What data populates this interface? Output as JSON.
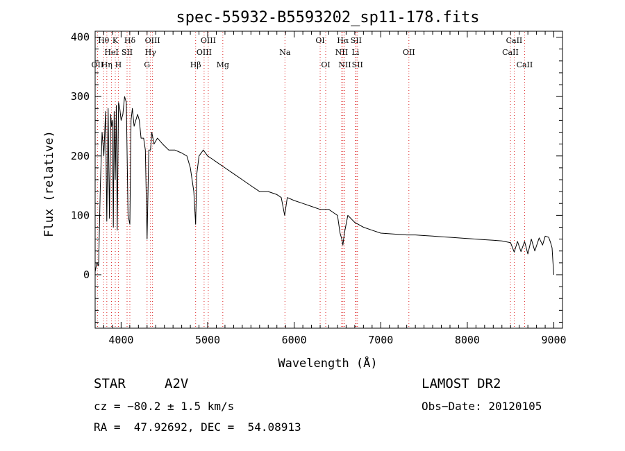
{
  "chart_data": {
    "type": "line",
    "title": "spec-55932-B5593202_sp11-178.fits",
    "xlabel": "Wavelength (Å)",
    "ylabel": "Flux (relative)",
    "xlim": [
      3700,
      9100
    ],
    "ylim": [
      -90,
      410
    ],
    "xticks": [
      4000,
      5000,
      6000,
      7000,
      8000,
      9000
    ],
    "yticks": [
      0,
      100,
      200,
      300,
      400
    ],
    "grid": false,
    "series": [
      {
        "x": [
          3700,
          3720,
          3740,
          3760,
          3780,
          3800,
          3820,
          3835,
          3850,
          3865,
          3880,
          3890,
          3900,
          3910,
          3920,
          3933,
          3945,
          3955,
          3970,
          3985,
          4000,
          4020,
          4040,
          4060,
          4080,
          4101,
          4115,
          4130,
          4150,
          4170,
          4190,
          4210,
          4230,
          4260,
          4280,
          4300,
          4320,
          4340,
          4355,
          4380,
          4420,
          4480,
          4550,
          4620,
          4700,
          4760,
          4800,
          4840,
          4861,
          4875,
          4900,
          4950,
          5000,
          5050,
          5100,
          5200,
          5300,
          5400,
          5500,
          5600,
          5700,
          5800,
          5850,
          5890,
          5920,
          6000,
          6100,
          6200,
          6300,
          6400,
          6450,
          6500,
          6530,
          6550,
          6563,
          6580,
          6620,
          6700,
          6800,
          6900,
          7000,
          7100,
          7200,
          7300,
          7400,
          7500,
          7600,
          7700,
          7800,
          7900,
          8000,
          8100,
          8200,
          8300,
          8400,
          8500,
          8542,
          8580,
          8620,
          8662,
          8700,
          8740,
          8780,
          8830,
          8870,
          8900,
          8940,
          8960,
          8980,
          8990,
          9000
        ],
        "y": [
          5,
          20,
          15,
          150,
          240,
          200,
          275,
          90,
          280,
          95,
          270,
          250,
          260,
          80,
          275,
          160,
          285,
          75,
          290,
          280,
          260,
          270,
          300,
          290,
          100,
          85,
          260,
          280,
          250,
          260,
          270,
          260,
          230,
          230,
          210,
          60,
          210,
          210,
          240,
          220,
          230,
          220,
          210,
          210,
          205,
          200,
          180,
          140,
          85,
          170,
          200,
          210,
          200,
          195,
          190,
          180,
          170,
          160,
          150,
          140,
          140,
          135,
          130,
          100,
          130,
          125,
          120,
          115,
          110,
          110,
          105,
          100,
          70,
          60,
          50,
          70,
          100,
          88,
          80,
          75,
          70,
          69,
          68,
          67,
          67,
          66,
          65,
          64,
          63,
          62,
          61,
          60,
          59,
          58,
          57,
          54,
          38,
          56,
          39,
          56,
          35,
          60,
          40,
          62,
          50,
          65,
          63,
          55,
          45,
          20,
          0
        ]
      }
    ],
    "line_labels": [
      {
        "text": "Hθ",
        "wavelength": 3798,
        "row": 1
      },
      {
        "text": "K",
        "wavelength": 3933,
        "row": 1
      },
      {
        "text": "Hδ",
        "wavelength": 4101,
        "row": 1
      },
      {
        "text": "OIII",
        "wavelength": 4363,
        "row": 1
      },
      {
        "text": "OIII",
        "wavelength": 5007,
        "row": 1
      },
      {
        "text": "OI",
        "wavelength": 6300,
        "row": 1
      },
      {
        "text": "Hα",
        "wavelength": 6563,
        "row": 1
      },
      {
        "text": "SII",
        "wavelength": 6716,
        "row": 1
      },
      {
        "text": "CaII",
        "wavelength": 8542,
        "row": 1
      },
      {
        "text": "HeI",
        "wavelength": 3889,
        "row": 2
      },
      {
        "text": "SII",
        "wavelength": 4069,
        "row": 2
      },
      {
        "text": "Hγ",
        "wavelength": 4340,
        "row": 2
      },
      {
        "text": "OIII",
        "wavelength": 4959,
        "row": 2
      },
      {
        "text": "Na",
        "wavelength": 5893,
        "row": 2
      },
      {
        "text": "NII",
        "wavelength": 6548,
        "row": 2
      },
      {
        "text": "Li",
        "wavelength": 6708,
        "row": 2
      },
      {
        "text": "OII",
        "wavelength": 7325,
        "row": 2
      },
      {
        "text": "CaII",
        "wavelength": 8498,
        "row": 2
      },
      {
        "text": "OII",
        "wavelength": 3727,
        "row": 3
      },
      {
        "text": "Hη",
        "wavelength": 3835,
        "row": 3
      },
      {
        "text": "H",
        "wavelength": 3968,
        "row": 3
      },
      {
        "text": "G",
        "wavelength": 4300,
        "row": 3
      },
      {
        "text": "Hβ",
        "wavelength": 4861,
        "row": 3
      },
      {
        "text": "Mg",
        "wavelength": 5175,
        "row": 3
      },
      {
        "text": "OI",
        "wavelength": 6364,
        "row": 3
      },
      {
        "text": "NII",
        "wavelength": 6584,
        "row": 3
      },
      {
        "text": "SII",
        "wavelength": 6731,
        "row": 3
      },
      {
        "text": "CaII",
        "wavelength": 8662,
        "row": 3
      }
    ]
  },
  "footer": {
    "object_type": "STAR",
    "subclass": "A2V",
    "survey": "LAMOST DR2",
    "cz": "cz = −80.2 ± 1.5 km/s",
    "obs_date": "Obs−Date: 20120105",
    "coords": "RA =  47.92692, DEC =  54.08913"
  }
}
